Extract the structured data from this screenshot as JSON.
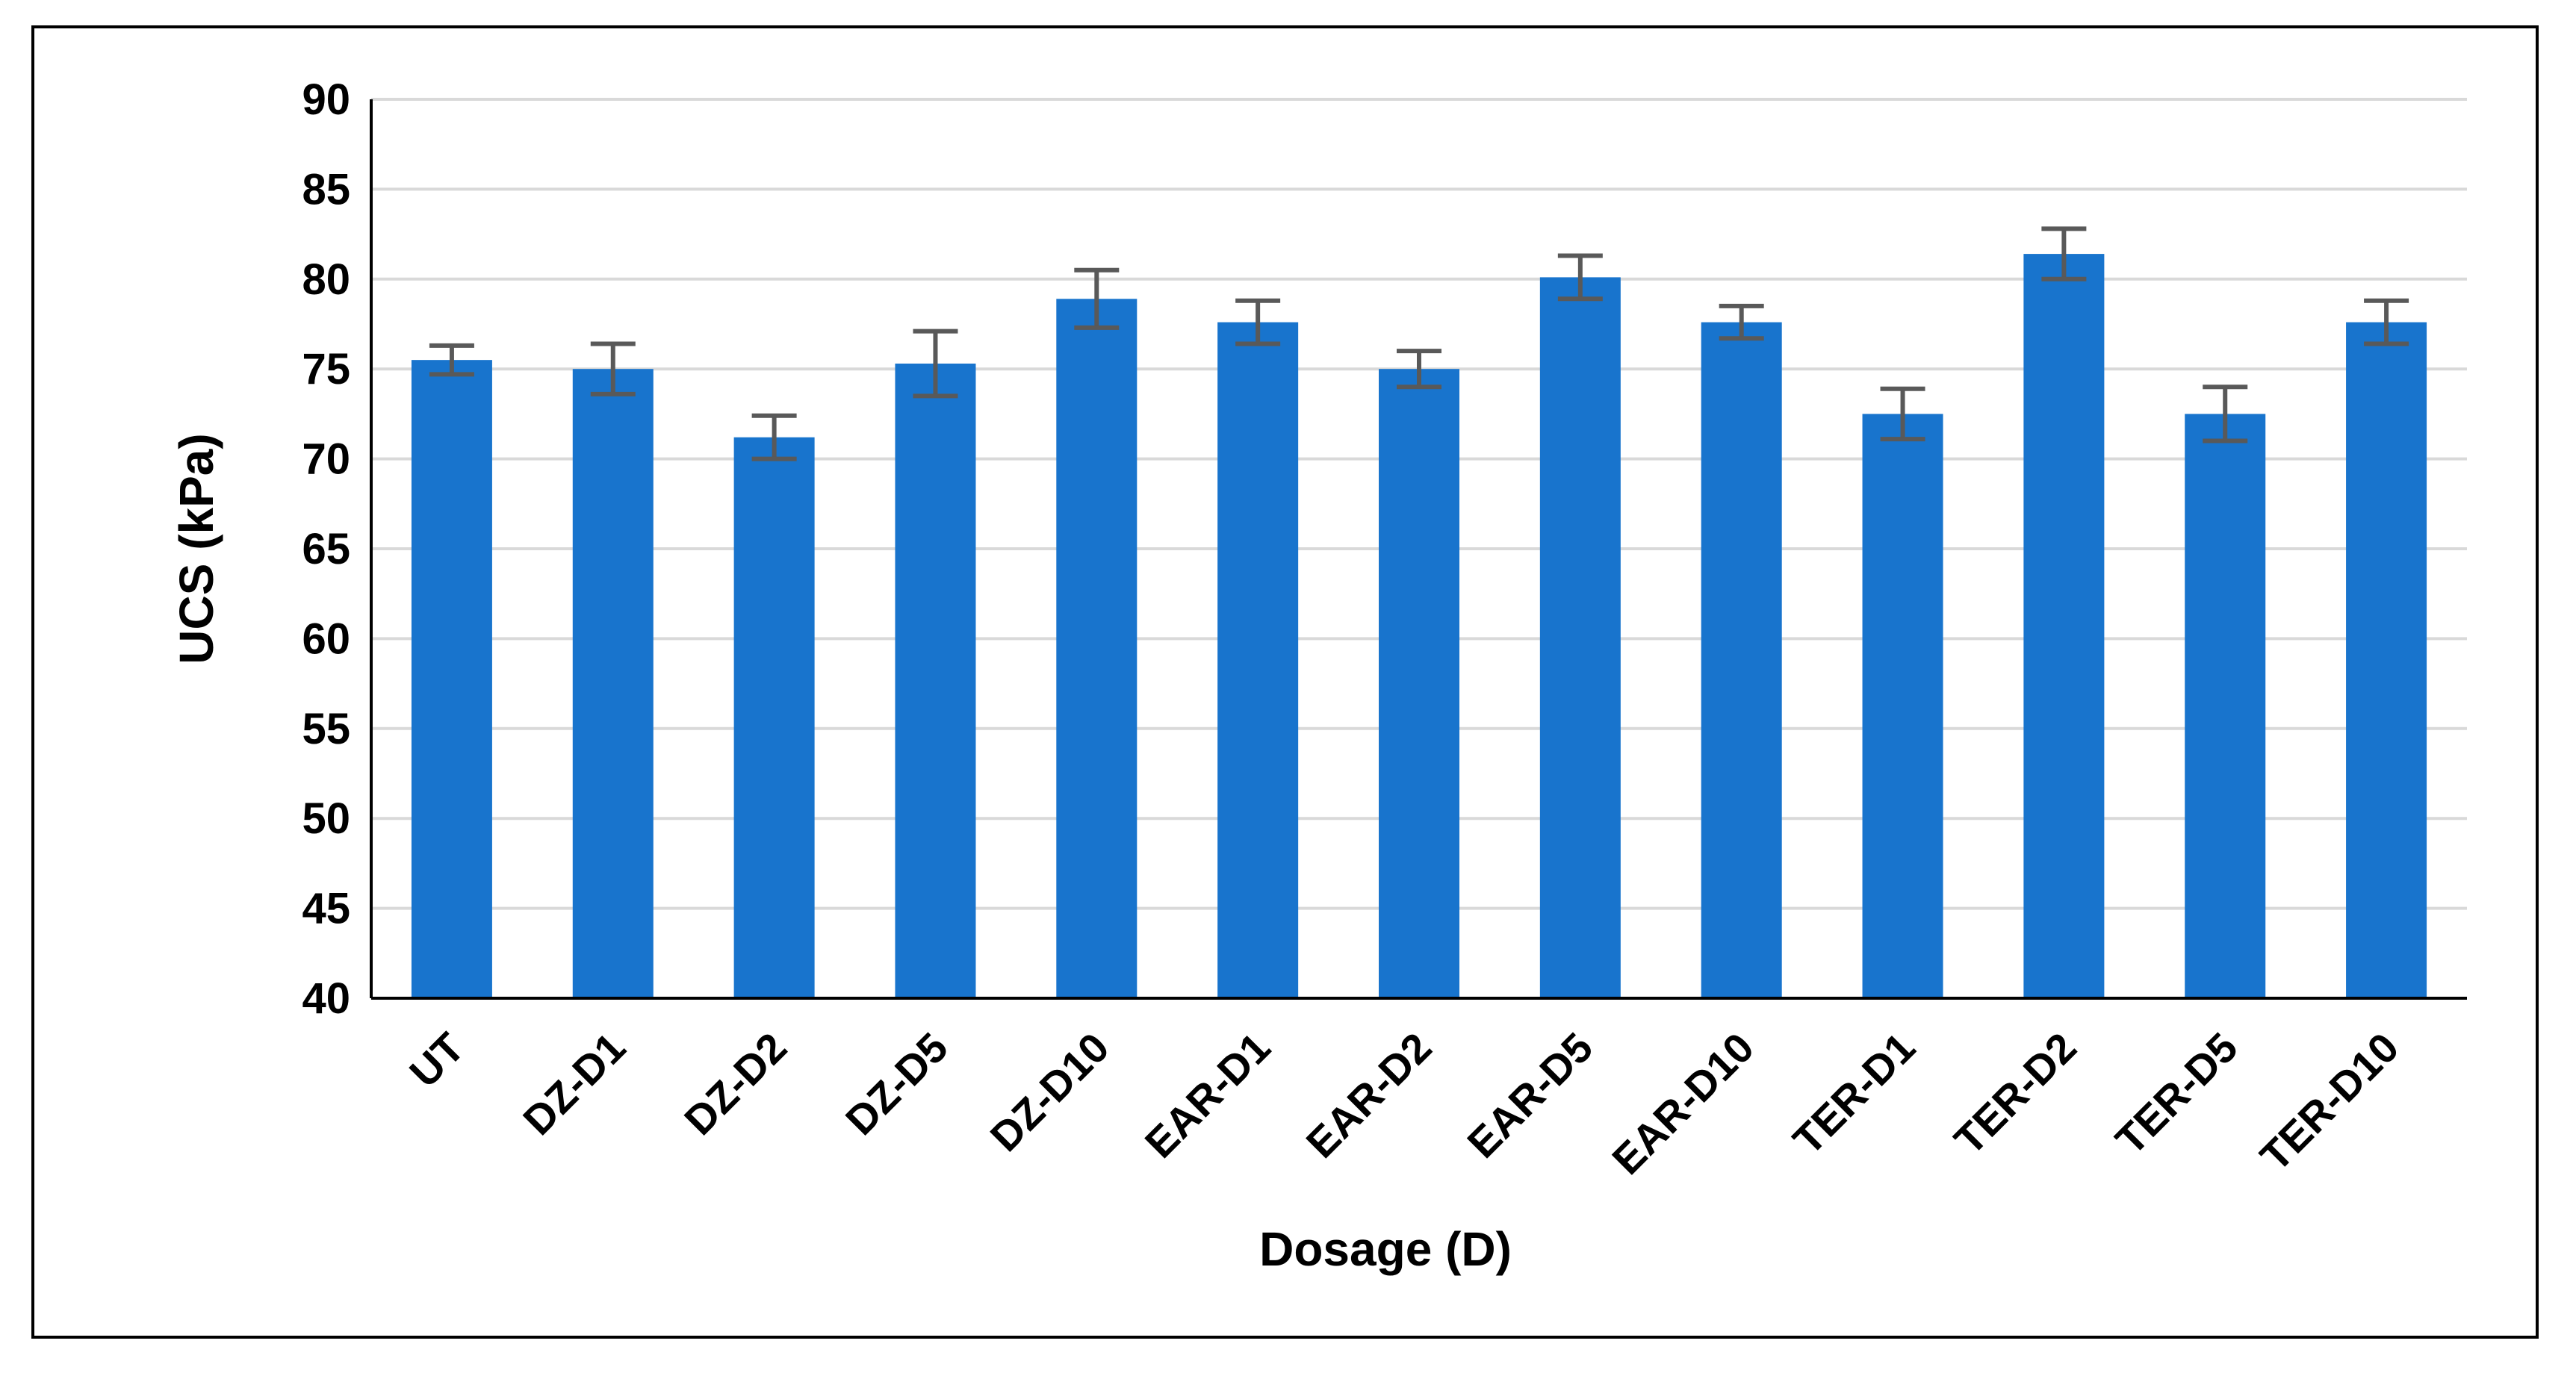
{
  "chart_data": {
    "type": "bar",
    "title": "",
    "xlabel": "Dosage (D)",
    "ylabel": "UCS (kPa)",
    "ylim": [
      40,
      90
    ],
    "yticks": [
      40,
      45,
      50,
      55,
      60,
      65,
      70,
      75,
      80,
      85,
      90
    ],
    "grid": true,
    "categories": [
      "UT",
      "DZ-D1",
      "DZ-D2",
      "DZ-D5",
      "DZ-D10",
      "EAR-D1",
      "EAR-D2",
      "EAR-D5",
      "EAR-D10",
      "TER-D1",
      "TER-D2",
      "TER-D5",
      "TER-D10"
    ],
    "series": [
      {
        "values": [
          75.5,
          75.0,
          71.2,
          75.3,
          78.9,
          77.6,
          75.0,
          80.1,
          77.6,
          72.5,
          81.4,
          72.5,
          77.6
        ],
        "errors": [
          0.8,
          1.4,
          1.2,
          1.8,
          1.6,
          1.2,
          1.0,
          1.2,
          0.9,
          1.4,
          1.4,
          1.5,
          1.2
        ],
        "color": "#1874CD"
      }
    ],
    "colors": {
      "bar": "#1874CD",
      "error_bar": "#595959",
      "grid": "#D9D9D9",
      "axis": "#000000"
    }
  }
}
